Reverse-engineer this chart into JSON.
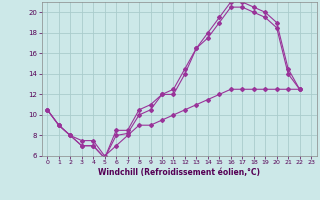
{
  "title": "",
  "xlabel": "Windchill (Refroidissement éolien,°C)",
  "ylabel": "",
  "background_color": "#cce8e8",
  "grid_color": "#aacccc",
  "line_color": "#993399",
  "xlim": [
    -0.5,
    23.5
  ],
  "ylim": [
    6,
    21
  ],
  "xticks": [
    0,
    1,
    2,
    3,
    4,
    5,
    6,
    7,
    8,
    9,
    10,
    11,
    12,
    13,
    14,
    15,
    16,
    17,
    18,
    19,
    20,
    21,
    22,
    23
  ],
  "yticks": [
    6,
    8,
    10,
    12,
    14,
    16,
    18,
    20
  ],
  "line1_x": [
    0,
    1,
    2,
    3,
    4,
    5,
    6,
    7,
    8,
    9,
    10,
    11,
    12,
    13,
    14,
    15,
    16,
    17,
    18,
    19,
    20,
    21,
    22
  ],
  "line1_y": [
    10.5,
    9.0,
    8.0,
    7.0,
    7.0,
    5.8,
    8.5,
    8.5,
    10.5,
    11.0,
    12.0,
    12.5,
    14.5,
    16.5,
    18.0,
    19.5,
    21.0,
    21.0,
    20.5,
    20.0,
    19.0,
    14.5,
    12.5
  ],
  "line2_x": [
    0,
    1,
    2,
    3,
    4,
    5,
    6,
    7,
    8,
    9,
    10,
    11,
    12,
    13,
    14,
    15,
    16,
    17,
    18,
    19,
    20,
    21,
    22
  ],
  "line2_y": [
    10.5,
    9.0,
    8.0,
    7.0,
    7.0,
    5.8,
    8.0,
    8.2,
    10.0,
    10.5,
    12.0,
    12.0,
    14.0,
    16.5,
    17.5,
    19.0,
    20.5,
    20.5,
    20.0,
    19.5,
    18.5,
    14.0,
    12.5
  ],
  "line3_x": [
    0,
    1,
    2,
    3,
    4,
    5,
    6,
    7,
    8,
    9,
    10,
    11,
    12,
    13,
    14,
    15,
    16,
    17,
    18,
    19,
    20,
    21,
    22
  ],
  "line3_y": [
    10.5,
    9.0,
    8.0,
    7.5,
    7.5,
    6.0,
    7.0,
    8.0,
    9.0,
    9.0,
    9.5,
    10.0,
    10.5,
    11.0,
    11.5,
    12.0,
    12.5,
    12.5,
    12.5,
    12.5,
    12.5,
    12.5,
    12.5
  ]
}
